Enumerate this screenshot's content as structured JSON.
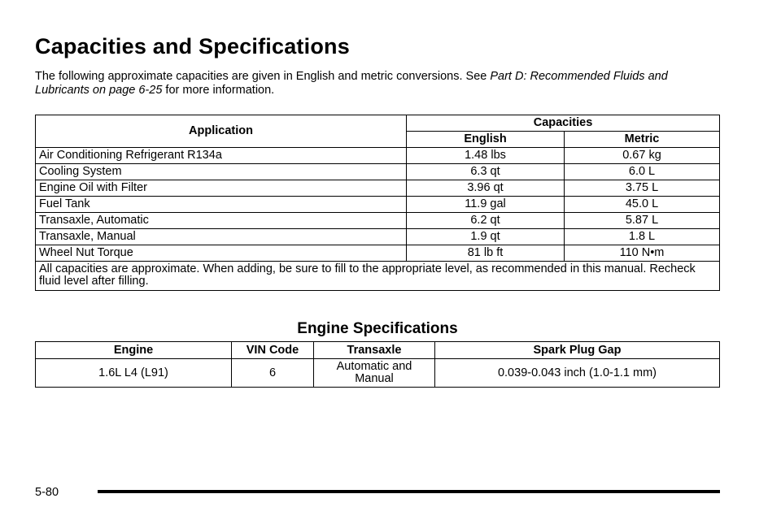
{
  "page_title": "Capacities and Specifications",
  "intro": {
    "text_before": "The following approximate capacities are given in English and metric conversions. See ",
    "link_text": "Part D: Recommended Fluids and Lubricants on page 6-25",
    "text_after": " for more information."
  },
  "capacities_table": {
    "header_application": "Application",
    "header_capacities": "Capacities",
    "header_english": "English",
    "header_metric": "Metric",
    "rows": [
      {
        "application": "Air Conditioning Refrigerant R134a",
        "english": "1.48 lbs",
        "metric": "0.67 kg"
      },
      {
        "application": "Cooling System",
        "english": "6.3 qt",
        "metric": "6.0 L"
      },
      {
        "application": "Engine Oil with Filter",
        "english": "3.96 qt",
        "metric": "3.75 L"
      },
      {
        "application": "Fuel Tank",
        "english": "11.9 gal",
        "metric": "45.0 L"
      },
      {
        "application": "Transaxle, Automatic",
        "english": "6.2 qt",
        "metric": "5.87 L"
      },
      {
        "application": "Transaxle, Manual",
        "english": "1.9 qt",
        "metric": "1.8 L"
      },
      {
        "application": "Wheel Nut Torque",
        "english": "81 lb ft",
        "metric": "110 N•m"
      }
    ],
    "note": "All capacities are approximate. When adding, be sure to fill to the appropriate level, as recommended in this manual. Recheck fluid level after filling."
  },
  "engine_section_title": "Engine Specifications",
  "engine_table": {
    "headers": [
      "Engine",
      "VIN Code",
      "Transaxle",
      "Spark Plug Gap"
    ],
    "rows": [
      {
        "engine": "1.6L L4 (L91)",
        "vin_code": "6",
        "transaxle": "Automatic and Manual",
        "spark_plug_gap": "0.039-0.043 inch (1.0-1.1 mm)"
      }
    ]
  },
  "page_number": "5-80"
}
